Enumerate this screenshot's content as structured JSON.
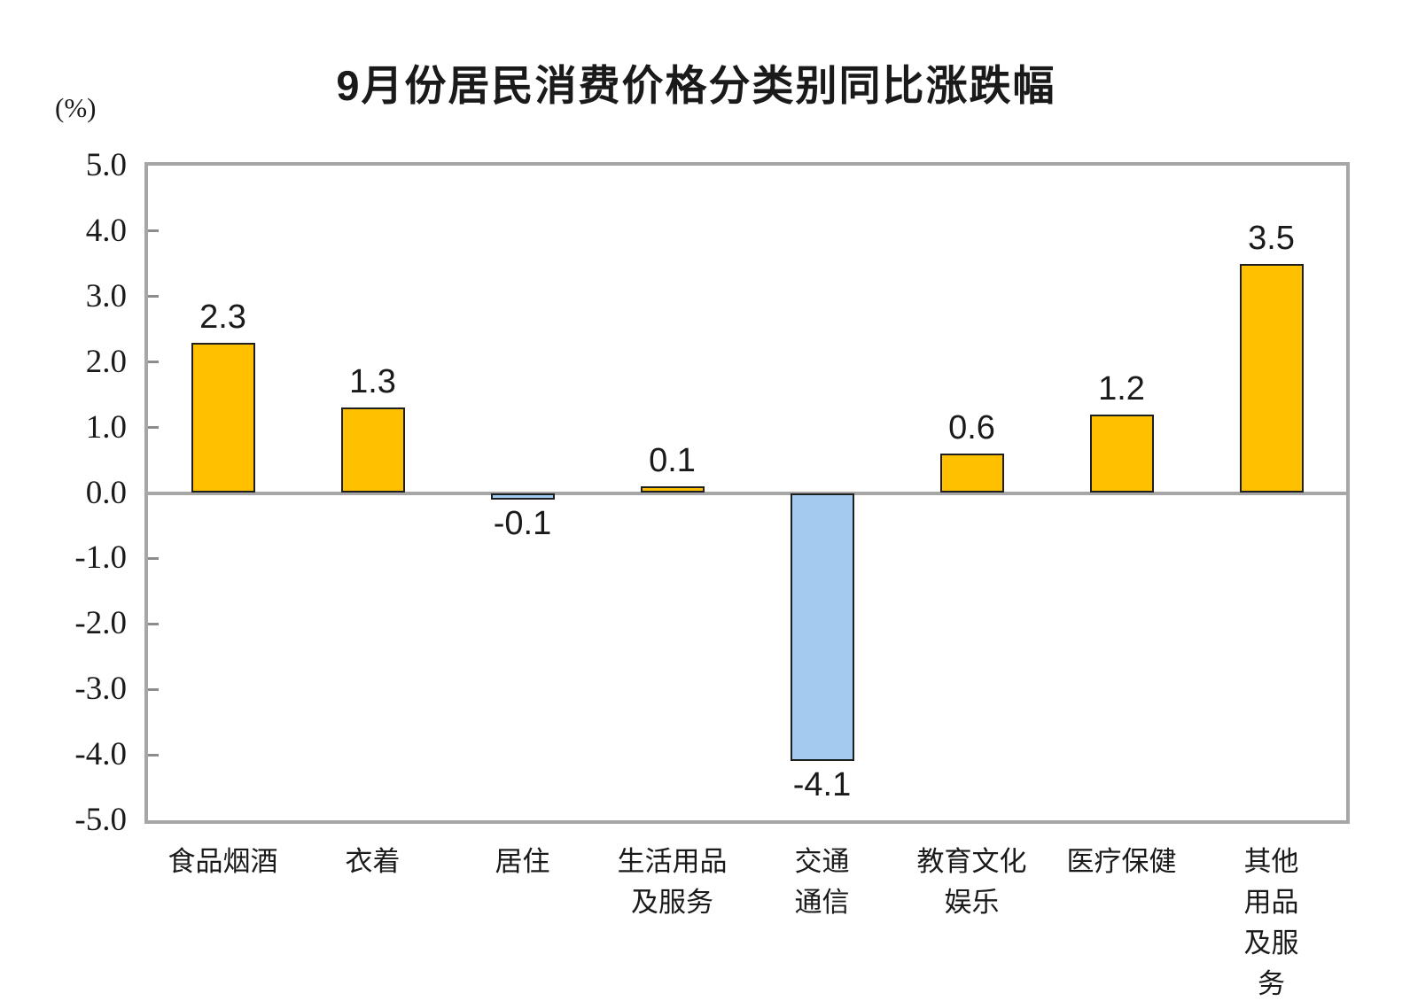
{
  "chart_data": {
    "type": "bar",
    "title": "9月份居民消费价格分类别同比涨跌幅",
    "unit_label": "(%)",
    "categories": [
      "食品烟酒",
      "衣着",
      "居住",
      "生活用品\n及服务",
      "交通\n通信",
      "教育文化\n娱乐",
      "医疗保健",
      "其他用品\n及服务"
    ],
    "values": [
      2.3,
      1.3,
      -0.1,
      0.1,
      -4.1,
      0.6,
      1.2,
      3.5
    ],
    "value_labels": [
      "2.3",
      "1.3",
      "-0.1",
      "0.1",
      "-4.1",
      "0.6",
      "1.2",
      "3.5"
    ],
    "ylim": [
      -5.0,
      5.0
    ],
    "ytick_step": 1.0,
    "yticks": [
      "5.0",
      "4.0",
      "3.0",
      "2.0",
      "1.0",
      "0.0",
      "-1.0",
      "-2.0",
      "-3.0",
      "-4.0",
      "-5.0"
    ],
    "xlabel": "",
    "ylabel": "(%)",
    "grid": false,
    "legend": "none",
    "colors": {
      "positive_bar": "#FFC000",
      "negative_bar": "#A3CBF0",
      "bar_border": "#1F1F1F",
      "axis_frame": "#A6A6A6",
      "zero_line": "#A6A6A6",
      "tick_mark": "#8C8C8C",
      "text": "#1A1A1A",
      "background": "#FFFFFF"
    }
  }
}
